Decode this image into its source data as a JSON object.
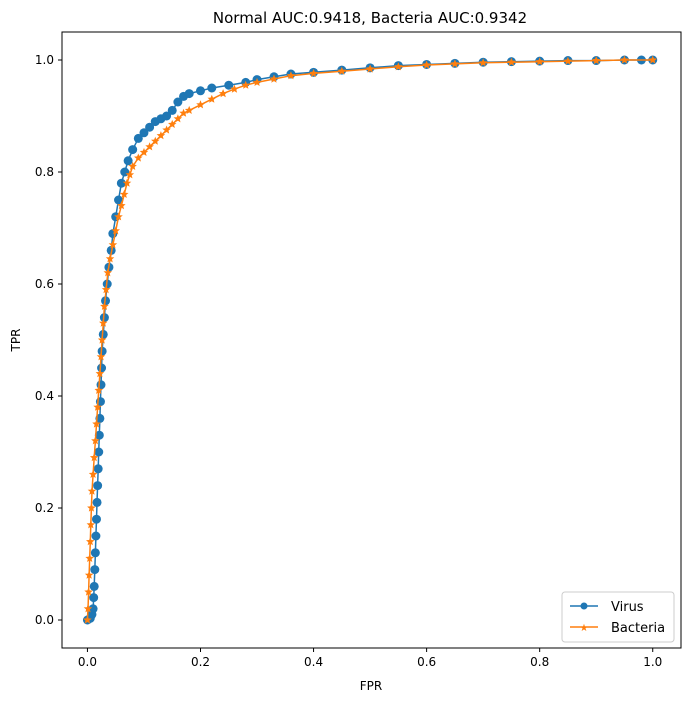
{
  "chart_data": {
    "type": "line",
    "title": "Normal AUC:0.9418, Bacteria AUC:0.9342",
    "xlabel": "FPR",
    "ylabel": "TPR",
    "xlim": [
      -0.045,
      1.05
    ],
    "ylim": [
      -0.05,
      1.05
    ],
    "xticks": [
      "0.0",
      "0.2",
      "0.4",
      "0.6",
      "0.8",
      "1.0"
    ],
    "yticks": [
      "0.0",
      "0.2",
      "0.4",
      "0.6",
      "0.8",
      "1.0"
    ],
    "grid": false,
    "legend_position": "lower-right",
    "series": [
      {
        "name": "Virus",
        "color": "#1f77b4",
        "marker": "circle",
        "points": [
          [
            0.0,
            0.0
          ],
          [
            0.005,
            0.003
          ],
          [
            0.008,
            0.01
          ],
          [
            0.01,
            0.02
          ],
          [
            0.011,
            0.04
          ],
          [
            0.012,
            0.06
          ],
          [
            0.013,
            0.09
          ],
          [
            0.014,
            0.12
          ],
          [
            0.015,
            0.15
          ],
          [
            0.016,
            0.18
          ],
          [
            0.017,
            0.21
          ],
          [
            0.018,
            0.24
          ],
          [
            0.019,
            0.27
          ],
          [
            0.02,
            0.3
          ],
          [
            0.021,
            0.33
          ],
          [
            0.022,
            0.36
          ],
          [
            0.023,
            0.39
          ],
          [
            0.024,
            0.42
          ],
          [
            0.025,
            0.45
          ],
          [
            0.026,
            0.48
          ],
          [
            0.028,
            0.51
          ],
          [
            0.03,
            0.54
          ],
          [
            0.032,
            0.57
          ],
          [
            0.035,
            0.6
          ],
          [
            0.038,
            0.63
          ],
          [
            0.042,
            0.66
          ],
          [
            0.045,
            0.69
          ],
          [
            0.05,
            0.72
          ],
          [
            0.055,
            0.75
          ],
          [
            0.06,
            0.78
          ],
          [
            0.066,
            0.8
          ],
          [
            0.072,
            0.82
          ],
          [
            0.08,
            0.84
          ],
          [
            0.09,
            0.86
          ],
          [
            0.1,
            0.87
          ],
          [
            0.11,
            0.88
          ],
          [
            0.12,
            0.89
          ],
          [
            0.13,
            0.895
          ],
          [
            0.14,
            0.9
          ],
          [
            0.15,
            0.91
          ],
          [
            0.16,
            0.925
          ],
          [
            0.17,
            0.935
          ],
          [
            0.18,
            0.94
          ],
          [
            0.2,
            0.945
          ],
          [
            0.22,
            0.95
          ],
          [
            0.25,
            0.955
          ],
          [
            0.28,
            0.96
          ],
          [
            0.3,
            0.965
          ],
          [
            0.33,
            0.97
          ],
          [
            0.36,
            0.975
          ],
          [
            0.4,
            0.978
          ],
          [
            0.45,
            0.982
          ],
          [
            0.5,
            0.986
          ],
          [
            0.55,
            0.99
          ],
          [
            0.6,
            0.992
          ],
          [
            0.65,
            0.994
          ],
          [
            0.7,
            0.996
          ],
          [
            0.75,
            0.997
          ],
          [
            0.8,
            0.998
          ],
          [
            0.85,
            0.999
          ],
          [
            0.9,
            0.999
          ],
          [
            0.95,
            1.0
          ],
          [
            0.98,
            1.0
          ],
          [
            1.0,
            1.0
          ]
        ]
      },
      {
        "name": "Bacteria",
        "color": "#ff7f0e",
        "marker": "star",
        "points": [
          [
            0.0,
            0.0
          ],
          [
            0.001,
            0.02
          ],
          [
            0.002,
            0.05
          ],
          [
            0.003,
            0.08
          ],
          [
            0.004,
            0.11
          ],
          [
            0.005,
            0.14
          ],
          [
            0.006,
            0.17
          ],
          [
            0.007,
            0.2
          ],
          [
            0.008,
            0.23
          ],
          [
            0.01,
            0.26
          ],
          [
            0.012,
            0.29
          ],
          [
            0.014,
            0.32
          ],
          [
            0.016,
            0.35
          ],
          [
            0.018,
            0.38
          ],
          [
            0.02,
            0.41
          ],
          [
            0.022,
            0.44
          ],
          [
            0.024,
            0.47
          ],
          [
            0.026,
            0.5
          ],
          [
            0.028,
            0.53
          ],
          [
            0.03,
            0.56
          ],
          [
            0.033,
            0.59
          ],
          [
            0.036,
            0.62
          ],
          [
            0.04,
            0.645
          ],
          [
            0.045,
            0.67
          ],
          [
            0.05,
            0.695
          ],
          [
            0.055,
            0.72
          ],
          [
            0.06,
            0.74
          ],
          [
            0.065,
            0.76
          ],
          [
            0.07,
            0.78
          ],
          [
            0.075,
            0.795
          ],
          [
            0.08,
            0.81
          ],
          [
            0.09,
            0.825
          ],
          [
            0.1,
            0.835
          ],
          [
            0.11,
            0.845
          ],
          [
            0.12,
            0.855
          ],
          [
            0.13,
            0.865
          ],
          [
            0.14,
            0.875
          ],
          [
            0.15,
            0.885
          ],
          [
            0.16,
            0.895
          ],
          [
            0.17,
            0.905
          ],
          [
            0.18,
            0.91
          ],
          [
            0.2,
            0.92
          ],
          [
            0.22,
            0.93
          ],
          [
            0.24,
            0.94
          ],
          [
            0.26,
            0.948
          ],
          [
            0.28,
            0.955
          ],
          [
            0.3,
            0.96
          ],
          [
            0.33,
            0.966
          ],
          [
            0.36,
            0.972
          ],
          [
            0.4,
            0.976
          ],
          [
            0.45,
            0.98
          ],
          [
            0.5,
            0.984
          ],
          [
            0.55,
            0.988
          ],
          [
            0.6,
            0.991
          ],
          [
            0.65,
            0.993
          ],
          [
            0.7,
            0.995
          ],
          [
            0.75,
            0.996
          ],
          [
            0.8,
            0.997
          ],
          [
            0.85,
            0.998
          ],
          [
            0.9,
            0.999
          ],
          [
            0.95,
            1.0
          ],
          [
            1.0,
            1.0
          ]
        ]
      }
    ]
  }
}
